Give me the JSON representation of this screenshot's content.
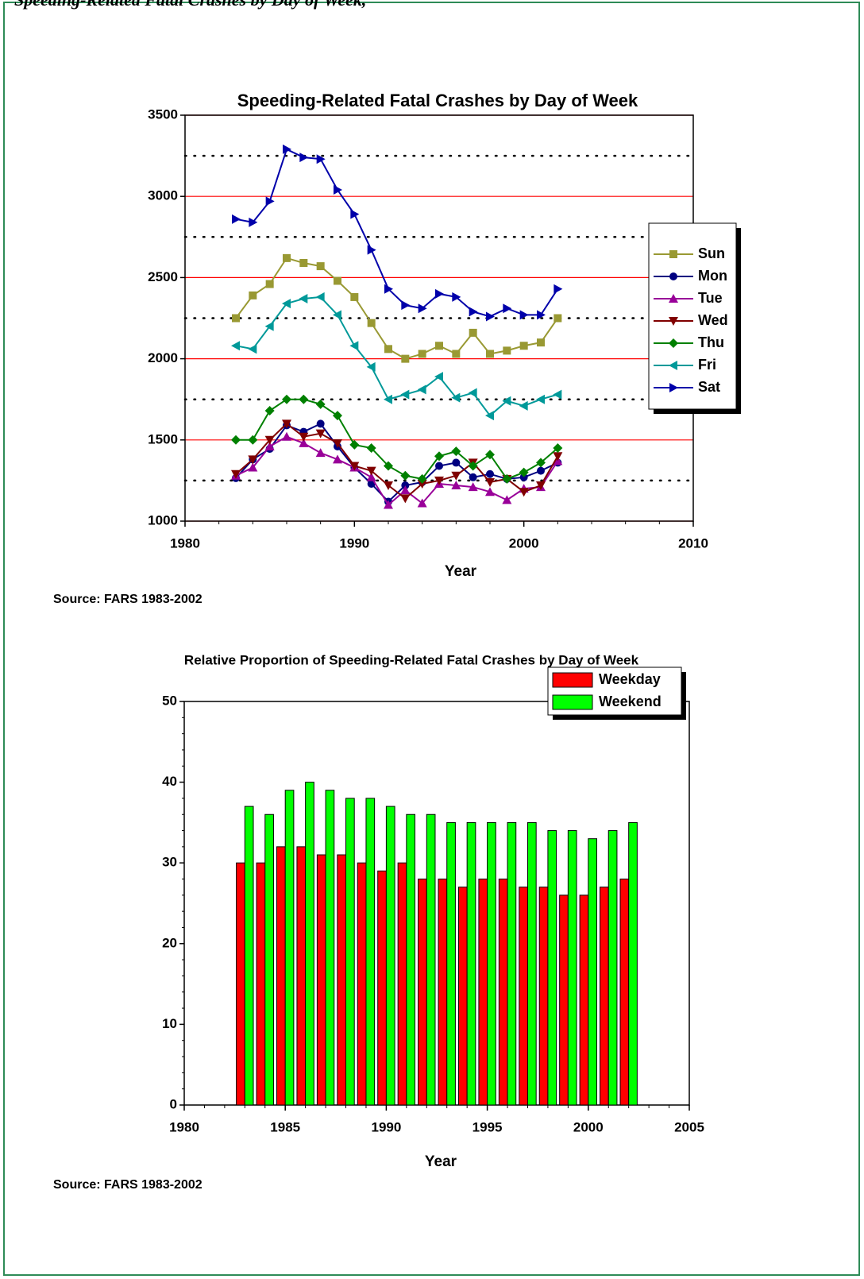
{
  "header": {
    "title": "Speeding-Related Fatal Crashes by Day of Week,"
  },
  "chart_data": [
    {
      "type": "line",
      "title": "Speeding-Related Fatal Crashes by Day of Week",
      "x_label": "Year",
      "source": "Source: FARS 1983-2002",
      "x": [
        1983,
        1984,
        1985,
        1986,
        1987,
        1988,
        1989,
        1990,
        1991,
        1992,
        1993,
        1994,
        1995,
        1996,
        1997,
        1998,
        1999,
        2000,
        2001,
        2002
      ],
      "xlim": [
        1980,
        2010
      ],
      "xticks": [
        1980,
        1990,
        2000,
        2010
      ],
      "ylim": [
        1000,
        3500
      ],
      "yticks": [
        1000,
        1500,
        2000,
        2500,
        3000,
        3500
      ],
      "grid": true,
      "grid_color": "#ff0000",
      "legend": "right",
      "series": [
        {
          "name": "Sun",
          "color": "#999933",
          "marker": "square",
          "values": [
            2250,
            2390,
            2460,
            2620,
            2590,
            2570,
            2480,
            2380,
            2220,
            2060,
            2000,
            2030,
            2080,
            2030,
            2160,
            2030,
            2050,
            2080,
            2100,
            2250
          ]
        },
        {
          "name": "Mon",
          "color": "#000080",
          "marker": "circle",
          "values": [
            1265,
            1380,
            1445,
            1590,
            1550,
            1600,
            1460,
            1330,
            1230,
            1120,
            1220,
            1240,
            1340,
            1360,
            1270,
            1290,
            1260,
            1270,
            1310,
            1360
          ]
        },
        {
          "name": "Tue",
          "color": "#990099",
          "marker": "triangle-up",
          "values": [
            1280,
            1330,
            1460,
            1520,
            1480,
            1420,
            1380,
            1330,
            1270,
            1100,
            1190,
            1110,
            1230,
            1220,
            1210,
            1180,
            1130,
            1200,
            1210,
            1370
          ]
        },
        {
          "name": "Wed",
          "color": "#800000",
          "marker": "triangle-down",
          "values": [
            1290,
            1380,
            1500,
            1600,
            1520,
            1540,
            1480,
            1340,
            1310,
            1220,
            1140,
            1230,
            1250,
            1280,
            1360,
            1240,
            1260,
            1180,
            1220,
            1400
          ]
        },
        {
          "name": "Thu",
          "color": "#008000",
          "marker": "diamond",
          "values": [
            1500,
            1500,
            1680,
            1750,
            1750,
            1720,
            1650,
            1470,
            1450,
            1340,
            1280,
            1260,
            1400,
            1430,
            1340,
            1410,
            1260,
            1300,
            1360,
            1450
          ]
        },
        {
          "name": "Fri",
          "color": "#009999",
          "marker": "triangle-left",
          "values": [
            2080,
            2060,
            2200,
            2340,
            2370,
            2380,
            2270,
            2080,
            1950,
            1750,
            1780,
            1810,
            1890,
            1760,
            1790,
            1650,
            1740,
            1710,
            1750,
            1780
          ]
        },
        {
          "name": "Sat",
          "color": "#0000aa",
          "marker": "triangle-right",
          "values": [
            2860,
            2840,
            2970,
            3290,
            3240,
            3230,
            3040,
            2890,
            2670,
            2430,
            2330,
            2310,
            2400,
            2380,
            2290,
            2260,
            2310,
            2270,
            2270,
            2430
          ]
        }
      ]
    },
    {
      "type": "bar",
      "title": "Relative Proportion of Speeding-Related Fatal Crashes by Day of Week",
      "x_label": "Year",
      "source": "Source: FARS 1983-2002",
      "x": [
        1983,
        1984,
        1985,
        1986,
        1987,
        1988,
        1989,
        1990,
        1991,
        1992,
        1993,
        1994,
        1995,
        1996,
        1997,
        1998,
        1999,
        2000,
        2001,
        2002
      ],
      "xlim": [
        1980,
        2005
      ],
      "xticks": [
        1980,
        1985,
        1990,
        1995,
        2000,
        2005
      ],
      "ylim": [
        0,
        50
      ],
      "yticks": [
        0,
        10,
        20,
        30,
        40,
        50
      ],
      "grid": false,
      "legend": "upper right",
      "series": [
        {
          "name": "Weekday",
          "color": "#ff0000",
          "values": [
            30,
            30,
            32,
            32,
            31,
            31,
            30,
            29,
            30,
            28,
            28,
            27,
            28,
            28,
            27,
            27,
            26,
            26,
            27,
            28
          ]
        },
        {
          "name": "Weekend",
          "color": "#00ff00",
          "values": [
            37,
            36,
            39,
            40,
            39,
            38,
            38,
            37,
            36,
            36,
            35,
            35,
            35,
            35,
            35,
            34,
            34,
            33,
            34,
            35
          ]
        }
      ]
    }
  ]
}
